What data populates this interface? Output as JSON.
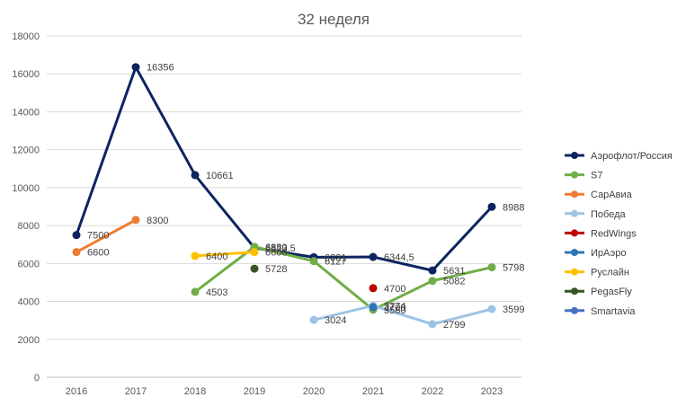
{
  "chart_data": {
    "type": "line",
    "title": "32 неделя",
    "xlabel": "",
    "ylabel": "",
    "categories": [
      "2016",
      "2017",
      "2018",
      "2019",
      "2020",
      "2021",
      "2022",
      "2023"
    ],
    "ylim": [
      0,
      18000
    ],
    "yticks": [
      "0",
      "2000",
      "4000",
      "6000",
      "8000",
      "10000",
      "12000",
      "14000",
      "16000",
      "18000"
    ],
    "grid": true,
    "legend_position": "right",
    "series": [
      {
        "name": "Аэрофлот/Россия",
        "color": "#0d2461",
        "values": [
          7500,
          16356,
          10661,
          6823.5,
          6331,
          6344.5,
          5631,
          8988
        ],
        "labels": [
          "7500",
          "16356",
          "10661",
          "6823,5",
          "6331",
          "6344,5",
          "5631",
          "8988"
        ]
      },
      {
        "name": "S7",
        "color": "#70ad47",
        "values": [
          null,
          null,
          4503,
          6880,
          6127,
          3560,
          5082,
          5798
        ],
        "labels": [
          "",
          "",
          "4503",
          "6880",
          "6127",
          "3560",
          "5082",
          "5798"
        ]
      },
      {
        "name": "СарАвиа",
        "color": "#ed7d31",
        "values": [
          6600,
          8300,
          null,
          null,
          null,
          null,
          null,
          null
        ],
        "labels": [
          "6600",
          "8300",
          "",
          "",
          "",
          "",
          "",
          ""
        ]
      },
      {
        "name": "Победа",
        "color": "#9dc3e6",
        "values": [
          null,
          null,
          null,
          null,
          3024,
          3774,
          2799,
          3599
        ],
        "labels": [
          "",
          "",
          "",
          "",
          "3024",
          "3774",
          "2799",
          "3599"
        ]
      },
      {
        "name": "RedWings",
        "color": "#c00000",
        "values": [
          null,
          null,
          null,
          null,
          null,
          4700,
          null,
          null
        ],
        "labels": [
          "",
          "",
          "",
          "",
          "",
          "4700",
          "",
          ""
        ]
      },
      {
        "name": "ИрАэро",
        "color": "#2e75b6",
        "values": [
          null,
          null,
          null,
          null,
          null,
          3700,
          null,
          null
        ],
        "labels": [
          "",
          "",
          "",
          "",
          "",
          "3700",
          "",
          ""
        ]
      },
      {
        "name": "Руслайн",
        "color": "#ffc000",
        "values": [
          null,
          null,
          6400,
          6600,
          null,
          null,
          null,
          null
        ],
        "labels": [
          "",
          "",
          "6400",
          "6600",
          "",
          "",
          "",
          ""
        ]
      },
      {
        "name": "PegasFly",
        "color": "#375623",
        "values": [
          null,
          null,
          null,
          5728,
          null,
          null,
          null,
          null
        ],
        "labels": [
          "",
          "",
          "",
          "5728",
          "",
          "",
          "",
          ""
        ]
      },
      {
        "name": "Smartavia",
        "color": "#4472c4",
        "values": [
          null,
          null,
          null,
          null,
          null,
          null,
          null,
          null
        ],
        "labels": [
          "",
          "",
          "",
          "",
          "",
          "",
          "",
          ""
        ]
      }
    ]
  }
}
